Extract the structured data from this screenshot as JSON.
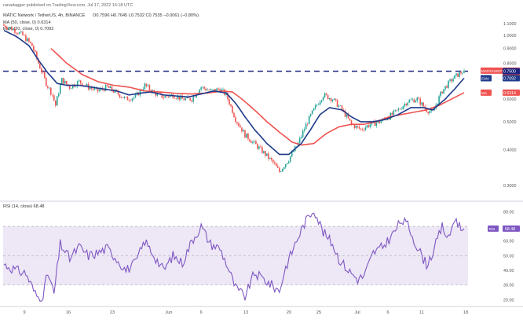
{
  "header": {
    "published_line": "ranadagger published on TradingView.com, Jul 17, 2022 16:18 UTC",
    "symbol_line": "MATIC Network / TetherUS, 4h, BINANCE",
    "ohlc_line": "O0.7596 H0.7645 L0.7532 C0.7535 −0.0061 (−0.80%)",
    "ma50_line": "MA (50, close, 0)  0.6314",
    "ema20_line": "EMA (20, close, 0)  0.7092"
  },
  "colors": {
    "candle_up": "#26a69a",
    "candle_down": "#ef5350",
    "sma50": "#ef5350",
    "ema20": "#1e3a8a",
    "resistance_line": "#1a237e",
    "rsi_line": "#7e57c2",
    "rsi_band": "#ede7f6"
  },
  "chart_data": [
    {
      "type": "candlestick",
      "title": "MATIC Network / TetherUS, 4h, BINANCE",
      "x_tick_labels": [
        "9",
        "16",
        "23",
        "Jun",
        "6",
        "13",
        "20",
        "25",
        "Jul",
        "6",
        "11",
        "18"
      ],
      "y_axis": {
        "scale": "log",
        "ylim": [
          0.2713,
          1.2308
        ],
        "ticks": [
          0.3,
          0.4,
          0.5,
          0.6,
          0.7,
          0.8,
          0.9,
          1.0,
          1.1
        ],
        "tick_labels": [
          "0.3000",
          "0.4000",
          "0.5000",
          "0.6000",
          "0.7000",
          "0.8000",
          "0.9000",
          "1.0000",
          "1.1000"
        ]
      },
      "grid": false,
      "horizontal_line": {
        "value": 0.75,
        "style": "dashed"
      },
      "price_badges": [
        {
          "label": "MATICUSDT",
          "value": "0.7535",
          "subtext": "03:41:26",
          "color": "#ef5350",
          "y": 0.7535
        },
        {
          "label": "",
          "value": "0.7500",
          "subtext": "",
          "color": "#1a237e",
          "y": 0.75
        },
        {
          "label": "EMA",
          "value": "0.7092",
          "subtext": "",
          "color": "#1e3a8a",
          "y": 0.7092
        },
        {
          "label": "MA",
          "value": "0.6314",
          "subtext": "",
          "color": "#ef5350",
          "y": 0.6314
        }
      ],
      "close_anchors": [
        [
          0,
          1.08
        ],
        [
          6,
          1.05
        ],
        [
          12,
          1.0
        ],
        [
          18,
          0.92
        ],
        [
          22,
          0.8
        ],
        [
          27,
          0.68
        ],
        [
          31,
          0.62
        ],
        [
          33,
          0.57
        ],
        [
          37,
          0.7
        ],
        [
          42,
          0.66
        ],
        [
          48,
          0.69
        ],
        [
          54,
          0.66
        ],
        [
          60,
          0.64
        ],
        [
          66,
          0.66
        ],
        [
          72,
          0.63
        ],
        [
          78,
          0.6
        ],
        [
          84,
          0.61
        ],
        [
          90,
          0.67
        ],
        [
          96,
          0.63
        ],
        [
          102,
          0.61
        ],
        [
          108,
          0.62
        ],
        [
          114,
          0.6
        ],
        [
          120,
          0.6
        ],
        [
          126,
          0.66
        ],
        [
          132,
          0.64
        ],
        [
          138,
          0.65
        ],
        [
          142,
          0.62
        ],
        [
          148,
          0.51
        ],
        [
          154,
          0.45
        ],
        [
          160,
          0.42
        ],
        [
          166,
          0.39
        ],
        [
          172,
          0.36
        ],
        [
          176,
          0.335
        ],
        [
          182,
          0.37
        ],
        [
          188,
          0.42
        ],
        [
          194,
          0.5
        ],
        [
          198,
          0.55
        ],
        [
          204,
          0.62
        ],
        [
          210,
          0.6
        ],
        [
          216,
          0.55
        ],
        [
          222,
          0.49
        ],
        [
          228,
          0.47
        ],
        [
          234,
          0.49
        ],
        [
          240,
          0.5
        ],
        [
          246,
          0.52
        ],
        [
          252,
          0.55
        ],
        [
          258,
          0.59
        ],
        [
          264,
          0.6
        ],
        [
          270,
          0.55
        ],
        [
          274,
          0.54
        ],
        [
          280,
          0.64
        ],
        [
          286,
          0.7
        ],
        [
          290,
          0.73
        ],
        [
          294,
          0.7535
        ]
      ],
      "sma50_anchors": [
        [
          30,
          0.9
        ],
        [
          40,
          0.8
        ],
        [
          50,
          0.73
        ],
        [
          60,
          0.69
        ],
        [
          70,
          0.67
        ],
        [
          80,
          0.66
        ],
        [
          90,
          0.64
        ],
        [
          100,
          0.635
        ],
        [
          110,
          0.628
        ],
        [
          120,
          0.625
        ],
        [
          130,
          0.63
        ],
        [
          140,
          0.64
        ],
        [
          146,
          0.635
        ],
        [
          152,
          0.6
        ],
        [
          160,
          0.55
        ],
        [
          168,
          0.5
        ],
        [
          176,
          0.46
        ],
        [
          184,
          0.425
        ],
        [
          190,
          0.415
        ],
        [
          198,
          0.42
        ],
        [
          206,
          0.455
        ],
        [
          214,
          0.48
        ],
        [
          222,
          0.49
        ],
        [
          230,
          0.49
        ],
        [
          238,
          0.5
        ],
        [
          246,
          0.52
        ],
        [
          254,
          0.53
        ],
        [
          262,
          0.54
        ],
        [
          270,
          0.55
        ],
        [
          278,
          0.57
        ],
        [
          286,
          0.6
        ],
        [
          294,
          0.6314
        ]
      ],
      "ema20_anchors": [
        [
          0,
          1.04
        ],
        [
          8,
          0.99
        ],
        [
          16,
          0.92
        ],
        [
          22,
          0.82
        ],
        [
          28,
          0.74
        ],
        [
          34,
          0.68
        ],
        [
          40,
          0.67
        ],
        [
          48,
          0.67
        ],
        [
          56,
          0.66
        ],
        [
          64,
          0.65
        ],
        [
          72,
          0.64
        ],
        [
          80,
          0.62
        ],
        [
          88,
          0.63
        ],
        [
          94,
          0.635
        ],
        [
          102,
          0.62
        ],
        [
          110,
          0.615
        ],
        [
          118,
          0.61
        ],
        [
          126,
          0.625
        ],
        [
          134,
          0.64
        ],
        [
          142,
          0.63
        ],
        [
          148,
          0.58
        ],
        [
          154,
          0.52
        ],
        [
          160,
          0.47
        ],
        [
          168,
          0.42
        ],
        [
          176,
          0.385
        ],
        [
          182,
          0.385
        ],
        [
          190,
          0.42
        ],
        [
          196,
          0.47
        ],
        [
          202,
          0.53
        ],
        [
          208,
          0.56
        ],
        [
          216,
          0.55
        ],
        [
          222,
          0.52
        ],
        [
          228,
          0.5
        ],
        [
          236,
          0.5
        ],
        [
          244,
          0.51
        ],
        [
          252,
          0.53
        ],
        [
          260,
          0.56
        ],
        [
          268,
          0.56
        ],
        [
          274,
          0.55
        ],
        [
          282,
          0.6
        ],
        [
          288,
          0.65
        ],
        [
          294,
          0.7092
        ]
      ],
      "candle_count": 295
    },
    {
      "type": "line",
      "title": "RSI (14, close)  68.48",
      "series": [
        {
          "name": "RSI (14, close)",
          "last_value": 68.48
        }
      ],
      "y_axis": {
        "ylim": [
          18,
          84
        ],
        "ticks": [
          20,
          30,
          40,
          50,
          60,
          70,
          80
        ],
        "tick_labels": [
          "20.00",
          "30.00",
          "40.00",
          "50.00",
          "60.00",
          "70.00",
          "80.00"
        ]
      },
      "reference_lines": [
        70,
        50,
        30
      ],
      "badge": {
        "label": "RSI",
        "value": "68.48"
      },
      "rsi_anchors": [
        [
          0,
          44
        ],
        [
          8,
          40
        ],
        [
          14,
          38
        ],
        [
          20,
          24
        ],
        [
          24,
          19
        ],
        [
          28,
          38
        ],
        [
          32,
          24
        ],
        [
          36,
          58
        ],
        [
          42,
          48
        ],
        [
          48,
          56
        ],
        [
          54,
          50
        ],
        [
          60,
          52
        ],
        [
          66,
          55
        ],
        [
          72,
          48
        ],
        [
          78,
          40
        ],
        [
          84,
          45
        ],
        [
          90,
          60
        ],
        [
          96,
          50
        ],
        [
          102,
          40
        ],
        [
          108,
          50
        ],
        [
          114,
          45
        ],
        [
          120,
          60
        ],
        [
          126,
          70
        ],
        [
          132,
          58
        ],
        [
          138,
          55
        ],
        [
          142,
          45
        ],
        [
          148,
          28
        ],
        [
          154,
          22
        ],
        [
          160,
          38
        ],
        [
          166,
          34
        ],
        [
          172,
          29
        ],
        [
          176,
          26
        ],
        [
          180,
          42
        ],
        [
          186,
          58
        ],
        [
          192,
          72
        ],
        [
          198,
          82
        ],
        [
          204,
          66
        ],
        [
          210,
          58
        ],
        [
          214,
          48
        ],
        [
          220,
          40
        ],
        [
          226,
          34
        ],
        [
          230,
          36
        ],
        [
          236,
          52
        ],
        [
          242,
          56
        ],
        [
          248,
          64
        ],
        [
          254,
          74
        ],
        [
          258,
          71
        ],
        [
          264,
          56
        ],
        [
          270,
          44
        ],
        [
          274,
          52
        ],
        [
          280,
          70
        ],
        [
          284,
          61
        ],
        [
          288,
          76
        ],
        [
          292,
          68.48
        ]
      ],
      "candle_count": 295
    }
  ]
}
